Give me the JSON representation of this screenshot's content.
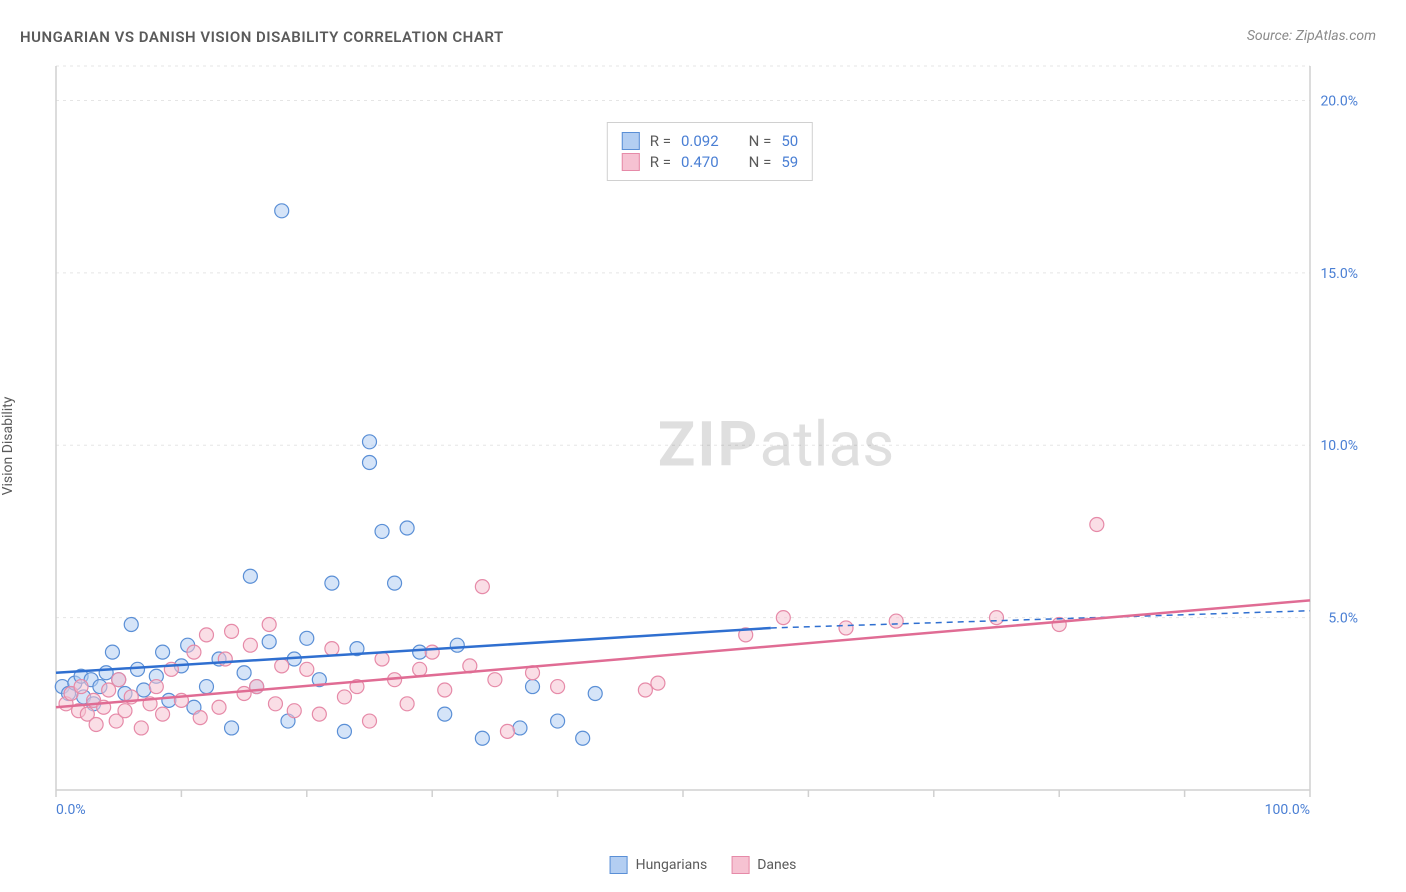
{
  "title": "HUNGARIAN VS DANISH VISION DISABILITY CORRELATION CHART",
  "source": "Source: ZipAtlas.com",
  "watermark_bold": "ZIP",
  "watermark_rest": "atlas",
  "y_axis_label": "Vision Disability",
  "chart": {
    "type": "scatter",
    "background_color": "#ffffff",
    "grid_color": "#e5e5e5",
    "axis_color": "#d0d0d0",
    "tick_label_color": "#4a7fd4",
    "label_color": "#5a5a5a",
    "title_color": "#5a5a5a",
    "title_fontsize": 15,
    "label_fontsize": 14,
    "tick_fontsize": 14,
    "xlim": [
      0,
      100
    ],
    "ylim": [
      0,
      21
    ],
    "x_ticks": [
      0,
      10,
      20,
      30,
      40,
      50,
      60,
      70,
      80,
      90,
      100
    ],
    "x_tick_labels_shown": {
      "0": "0.0%",
      "100": "100.0%"
    },
    "y_ticks": [
      5,
      10,
      15,
      20
    ],
    "y_tick_labels": {
      "5": "5.0%",
      "10": "10.0%",
      "15": "15.0%",
      "20": "20.0%"
    },
    "marker_radius": 7,
    "marker_stroke_width": 1.2,
    "trend_line_width": 2.5,
    "trend_dash_pattern": "6,5",
    "series": [
      {
        "name": "Hungarians",
        "fill": "#b3cef2",
        "stroke": "#5a8fd6",
        "fill_opacity": 0.55,
        "R": "0.092",
        "N": "50",
        "trend": {
          "solid": {
            "x1": 0,
            "y1": 3.4,
            "x2": 57,
            "y2": 4.7
          },
          "dashed": {
            "x1": 57,
            "y1": 4.7,
            "x2": 100,
            "y2": 5.2
          },
          "color": "#2f6fd0"
        },
        "points": [
          [
            0.5,
            3.0
          ],
          [
            1.0,
            2.8
          ],
          [
            1.5,
            3.1
          ],
          [
            2.0,
            3.3
          ],
          [
            2.2,
            2.7
          ],
          [
            2.8,
            3.2
          ],
          [
            3.0,
            2.5
          ],
          [
            3.5,
            3.0
          ],
          [
            4.0,
            3.4
          ],
          [
            4.5,
            4.0
          ],
          [
            5.0,
            3.2
          ],
          [
            5.5,
            2.8
          ],
          [
            6.0,
            4.8
          ],
          [
            6.5,
            3.5
          ],
          [
            7.0,
            2.9
          ],
          [
            8.0,
            3.3
          ],
          [
            8.5,
            4.0
          ],
          [
            9.0,
            2.6
          ],
          [
            10.0,
            3.6
          ],
          [
            10.5,
            4.2
          ],
          [
            11.0,
            2.4
          ],
          [
            12.0,
            3.0
          ],
          [
            13.0,
            3.8
          ],
          [
            14.0,
            1.8
          ],
          [
            15.0,
            3.4
          ],
          [
            15.5,
            6.2
          ],
          [
            16.0,
            3.0
          ],
          [
            17.0,
            4.3
          ],
          [
            18.0,
            16.8
          ],
          [
            18.5,
            2.0
          ],
          [
            19.0,
            3.8
          ],
          [
            20.0,
            4.4
          ],
          [
            21.0,
            3.2
          ],
          [
            22.0,
            6.0
          ],
          [
            23.0,
            1.7
          ],
          [
            24.0,
            4.1
          ],
          [
            25.0,
            10.1
          ],
          [
            25.0,
            9.5
          ],
          [
            26.0,
            7.5
          ],
          [
            27.0,
            6.0
          ],
          [
            28.0,
            7.6
          ],
          [
            29.0,
            4.0
          ],
          [
            31.0,
            2.2
          ],
          [
            32.0,
            4.2
          ],
          [
            34.0,
            1.5
          ],
          [
            37.0,
            1.8
          ],
          [
            38.0,
            3.0
          ],
          [
            40.0,
            2.0
          ],
          [
            42.0,
            1.5
          ],
          [
            43.0,
            2.8
          ]
        ]
      },
      {
        "name": "Danes",
        "fill": "#f6c2d2",
        "stroke": "#e68aa8",
        "fill_opacity": 0.55,
        "R": "0.470",
        "N": "59",
        "trend": {
          "solid": {
            "x1": 0,
            "y1": 2.4,
            "x2": 100,
            "y2": 5.5
          },
          "dashed": null,
          "color": "#e06c94"
        },
        "points": [
          [
            0.8,
            2.5
          ],
          [
            1.2,
            2.8
          ],
          [
            1.8,
            2.3
          ],
          [
            2.0,
            3.0
          ],
          [
            2.5,
            2.2
          ],
          [
            3.0,
            2.6
          ],
          [
            3.2,
            1.9
          ],
          [
            3.8,
            2.4
          ],
          [
            4.2,
            2.9
          ],
          [
            4.8,
            2.0
          ],
          [
            5.0,
            3.2
          ],
          [
            5.5,
            2.3
          ],
          [
            6.0,
            2.7
          ],
          [
            6.8,
            1.8
          ],
          [
            7.5,
            2.5
          ],
          [
            8.0,
            3.0
          ],
          [
            8.5,
            2.2
          ],
          [
            9.2,
            3.5
          ],
          [
            10.0,
            2.6
          ],
          [
            11.0,
            4.0
          ],
          [
            11.5,
            2.1
          ],
          [
            12.0,
            4.5
          ],
          [
            13.0,
            2.4
          ],
          [
            13.5,
            3.8
          ],
          [
            14.0,
            4.6
          ],
          [
            15.0,
            2.8
          ],
          [
            15.5,
            4.2
          ],
          [
            16.0,
            3.0
          ],
          [
            17.0,
            4.8
          ],
          [
            17.5,
            2.5
          ],
          [
            18.0,
            3.6
          ],
          [
            19.0,
            2.3
          ],
          [
            20.0,
            3.5
          ],
          [
            21.0,
            2.2
          ],
          [
            22.0,
            4.1
          ],
          [
            23.0,
            2.7
          ],
          [
            24.0,
            3.0
          ],
          [
            25.0,
            2.0
          ],
          [
            26.0,
            3.8
          ],
          [
            27.0,
            3.2
          ],
          [
            28.0,
            2.5
          ],
          [
            29.0,
            3.5
          ],
          [
            30.0,
            4.0
          ],
          [
            31.0,
            2.9
          ],
          [
            33.0,
            3.6
          ],
          [
            34.0,
            5.9
          ],
          [
            35.0,
            3.2
          ],
          [
            36.0,
            1.7
          ],
          [
            38.0,
            3.4
          ],
          [
            40.0,
            3.0
          ],
          [
            47.0,
            2.9
          ],
          [
            48.0,
            3.1
          ],
          [
            55.0,
            4.5
          ],
          [
            58.0,
            5.0
          ],
          [
            63.0,
            4.7
          ],
          [
            67.0,
            4.9
          ],
          [
            75.0,
            5.0
          ],
          [
            80.0,
            4.8
          ],
          [
            83.0,
            7.7
          ]
        ]
      }
    ]
  },
  "stats_box": {
    "r_label": "R =",
    "n_label": "N ="
  },
  "legend": {
    "hungarians": "Hungarians",
    "danes": "Danes"
  }
}
